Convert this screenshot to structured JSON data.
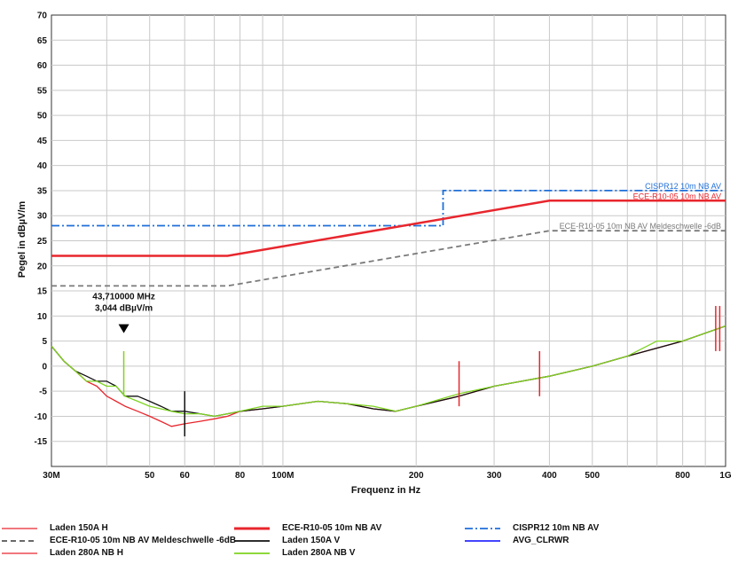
{
  "chart_data": {
    "type": "line",
    "title": "",
    "xlabel": "Frequenz in Hz",
    "ylabel": "Pegel in dBµV/m",
    "x_scale": "log",
    "xlim": [
      30,
      1000
    ],
    "ylim": [
      -20,
      70
    ],
    "y_ticks": [
      70,
      65,
      60,
      55,
      50,
      45,
      40,
      35,
      30,
      25,
      20,
      15,
      10,
      5,
      0,
      -5,
      -10,
      -15
    ],
    "x_ticks": [
      {
        "value": 30,
        "label": "30M"
      },
      {
        "value": 50,
        "label": "50"
      },
      {
        "value": 60,
        "label": "60"
      },
      {
        "value": 80,
        "label": "80"
      },
      {
        "value": 100,
        "label": "100M"
      },
      {
        "value": 200,
        "label": "200"
      },
      {
        "value": 300,
        "label": "300"
      },
      {
        "value": 400,
        "label": "400"
      },
      {
        "value": 500,
        "label": "500"
      },
      {
        "value": 800,
        "label": "800"
      },
      {
        "value": 1000,
        "label": "1G"
      }
    ],
    "grid": true,
    "limit_lines": [
      {
        "name": "CISPR12 10m NB AV",
        "color": "#1e6fd9",
        "style": "dashdot",
        "points": [
          [
            30,
            28
          ],
          [
            230,
            28
          ],
          [
            230,
            35
          ],
          [
            1000,
            35
          ]
        ]
      },
      {
        "name": "ECE-R10-05 10m NB AV",
        "color": "#e8262d",
        "style": "solid",
        "points": [
          [
            30,
            22
          ],
          [
            75,
            22
          ],
          [
            400,
            33
          ],
          [
            1000,
            33
          ]
        ]
      },
      {
        "name": "ECE-R10-05 10m NB AV Meldeschwelle -6dB",
        "color": "#7a7a7a",
        "style": "dash",
        "points": [
          [
            30,
            16
          ],
          [
            75,
            16
          ],
          [
            400,
            27
          ],
          [
            1000,
            27
          ]
        ]
      }
    ],
    "measurement_lines": [
      {
        "name": "Laden 150A H",
        "color": "#e8262d",
        "points": [
          [
            30,
            4
          ],
          [
            32,
            1
          ],
          [
            34,
            -1
          ],
          [
            36,
            -3
          ],
          [
            38,
            -4
          ],
          [
            40,
            -6
          ],
          [
            42,
            -7
          ],
          [
            44,
            -8
          ],
          [
            47,
            -9
          ],
          [
            50,
            -10
          ],
          [
            53,
            -11
          ],
          [
            56,
            -12
          ],
          [
            60,
            -11.5
          ],
          [
            65,
            -11
          ],
          [
            70,
            -10.5
          ],
          [
            75,
            -10
          ],
          [
            80,
            -9
          ],
          [
            90,
            -8.5
          ],
          [
            100,
            -8
          ],
          [
            120,
            -7
          ],
          [
            140,
            -7.5
          ],
          [
            160,
            -8.5
          ],
          [
            180,
            -9
          ],
          [
            200,
            -8
          ],
          [
            250,
            -6
          ],
          [
            300,
            -4
          ],
          [
            400,
            -2
          ],
          [
            500,
            0
          ],
          [
            600,
            2
          ],
          [
            800,
            5
          ],
          [
            1000,
            8
          ]
        ]
      },
      {
        "name": "Laden 150A V",
        "color": "#111111",
        "points": [
          [
            30,
            4
          ],
          [
            32,
            1
          ],
          [
            34,
            -1
          ],
          [
            36,
            -2
          ],
          [
            38,
            -3
          ],
          [
            40,
            -3
          ],
          [
            42,
            -4
          ],
          [
            44,
            -6
          ],
          [
            47,
            -6
          ],
          [
            50,
            -7
          ],
          [
            53,
            -8
          ],
          [
            56,
            -9
          ],
          [
            60,
            -9
          ],
          [
            65,
            -9.5
          ],
          [
            70,
            -10
          ],
          [
            75,
            -9.5
          ],
          [
            80,
            -9
          ],
          [
            90,
            -8.5
          ],
          [
            100,
            -8
          ],
          [
            120,
            -7
          ],
          [
            140,
            -7.5
          ],
          [
            160,
            -8.5
          ],
          [
            180,
            -9
          ],
          [
            200,
            -8
          ],
          [
            250,
            -6
          ],
          [
            300,
            -4
          ],
          [
            400,
            -2
          ],
          [
            500,
            0
          ],
          [
            600,
            2
          ],
          [
            800,
            5
          ],
          [
            1000,
            8
          ]
        ]
      },
      {
        "name": "Laden 280A NB V",
        "color": "#7ed321",
        "points": [
          [
            30,
            4
          ],
          [
            32,
            1
          ],
          [
            34,
            -1
          ],
          [
            36,
            -3
          ],
          [
            38,
            -3
          ],
          [
            40,
            -4
          ],
          [
            42,
            -4
          ],
          [
            44,
            -6
          ],
          [
            47,
            -7
          ],
          [
            50,
            -8
          ],
          [
            53,
            -8.5
          ],
          [
            56,
            -9
          ],
          [
            60,
            -9.5
          ],
          [
            65,
            -9.5
          ],
          [
            70,
            -10
          ],
          [
            75,
            -9.5
          ],
          [
            80,
            -9
          ],
          [
            90,
            -8
          ],
          [
            100,
            -8
          ],
          [
            120,
            -7
          ],
          [
            140,
            -7.5
          ],
          [
            160,
            -8
          ],
          [
            180,
            -9
          ],
          [
            200,
            -8
          ],
          [
            250,
            -5.5
          ],
          [
            300,
            -4
          ],
          [
            400,
            -2
          ],
          [
            500,
            0
          ],
          [
            600,
            2
          ],
          [
            700,
            5
          ],
          [
            800,
            5
          ],
          [
            1000,
            8
          ]
        ]
      }
    ],
    "spikes": [
      {
        "x": 43.7,
        "y": 3,
        "color": "#7ed321"
      },
      {
        "x": 60,
        "y": -5,
        "color": "#111111"
      },
      {
        "x": 250,
        "y": 1,
        "color": "#e8262d"
      },
      {
        "x": 380,
        "y": 3,
        "color": "#e8262d"
      },
      {
        "x": 950,
        "y": 12,
        "color": "#e8262d"
      },
      {
        "x": 970,
        "y": 12,
        "color": "#e8262d"
      }
    ],
    "marker": {
      "x": 43.71,
      "y": 3.044,
      "label_freq": "43,710000 MHz",
      "label_level": "3,044 dBµV/m"
    },
    "line_labels": [
      {
        "text": "CISPR12 10m NB AV",
        "color": "#1e6fd9"
      },
      {
        "text": "ECE-R10-05 10m NB AV",
        "color": "#e8262d"
      },
      {
        "text": "ECE-R10-05 10m NB AV Meldeschwelle -6dB",
        "color": "#7a7a7a"
      }
    ]
  },
  "legend": {
    "items": [
      {
        "label": "Laden 150A H",
        "color": "#e8262d",
        "style": "thin"
      },
      {
        "label": "ECE-R10-05 10m NB AV Meldeschwelle -6dB",
        "color": "#555555",
        "style": "dash"
      },
      {
        "label": "Laden 280A NB H",
        "color": "#e8262d",
        "style": "thin"
      },
      {
        "label": "ECE-R10-05 10m NB AV",
        "color": "#e8262d",
        "style": "thick"
      },
      {
        "label": "Laden 150A V",
        "color": "#111111",
        "style": "solid"
      },
      {
        "label": "Laden 280A NB V",
        "color": "#7ed321",
        "style": "solid"
      },
      {
        "label": "CISPR12 10m NB AV",
        "color": "#1e6fd9",
        "style": "dashdot"
      },
      {
        "label": "AVG_CLRWR",
        "color": "#2a2aff",
        "style": "solid"
      }
    ]
  }
}
